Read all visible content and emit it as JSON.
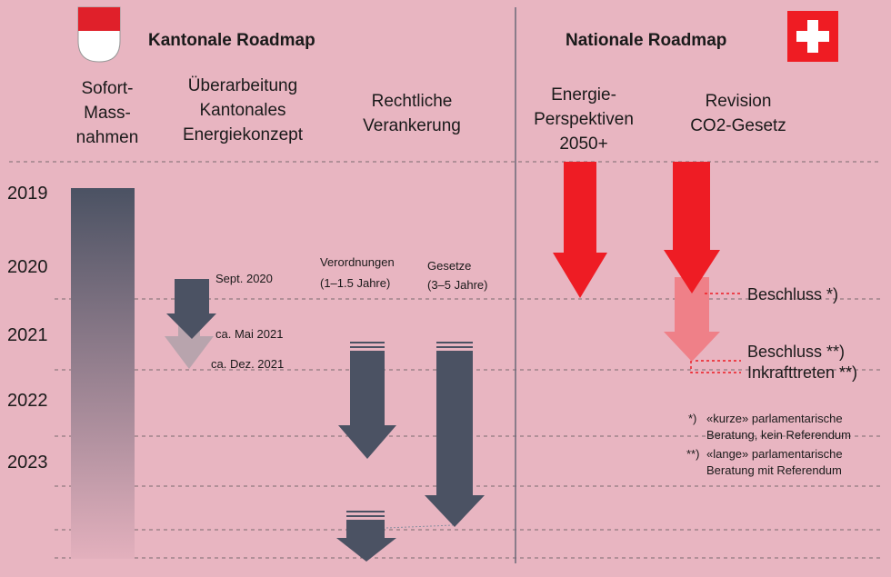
{
  "header": {
    "left": "Kantonale Roadmap",
    "right": "Nationale Roadmap"
  },
  "columns": [
    {
      "lines": [
        "Sofort-",
        "Mass-",
        "nahmen"
      ]
    },
    {
      "lines": [
        "Überarbeitung",
        "Kantonales",
        "Energiekonzept"
      ]
    },
    {
      "lines": [
        "Rechtliche",
        "Verankerung"
      ]
    },
    {
      "lines": [
        "Energie-",
        "Perspektiven",
        "2050+"
      ]
    },
    {
      "lines": [
        "Revision",
        "CO2-Gesetz"
      ]
    }
  ],
  "years": [
    "2019",
    "2020",
    "2021",
    "2022",
    "2023"
  ],
  "labels": {
    "sept": "Sept. 2020",
    "mai": "ca. Mai 2021",
    "dez": "ca. Dez. 2021",
    "verordnungen": [
      "Verordnungen",
      "(1–1.5 Jahre)"
    ],
    "gesetze": [
      "Gesetze",
      "(3–5 Jahre)"
    ],
    "beschluss1": "Beschluss *)",
    "beschluss2": "Beschluss **)",
    "inkraft": "Inkrafttreten **)"
  },
  "footnotes": [
    {
      "mark": "*)",
      "lines": [
        "«kurze» parlamentarische",
        "Beratung, kein Referendum"
      ]
    },
    {
      "mark": "**)",
      "lines": [
        "«lange» parlamentarische",
        "Beratung mit Referendum"
      ]
    }
  ]
}
